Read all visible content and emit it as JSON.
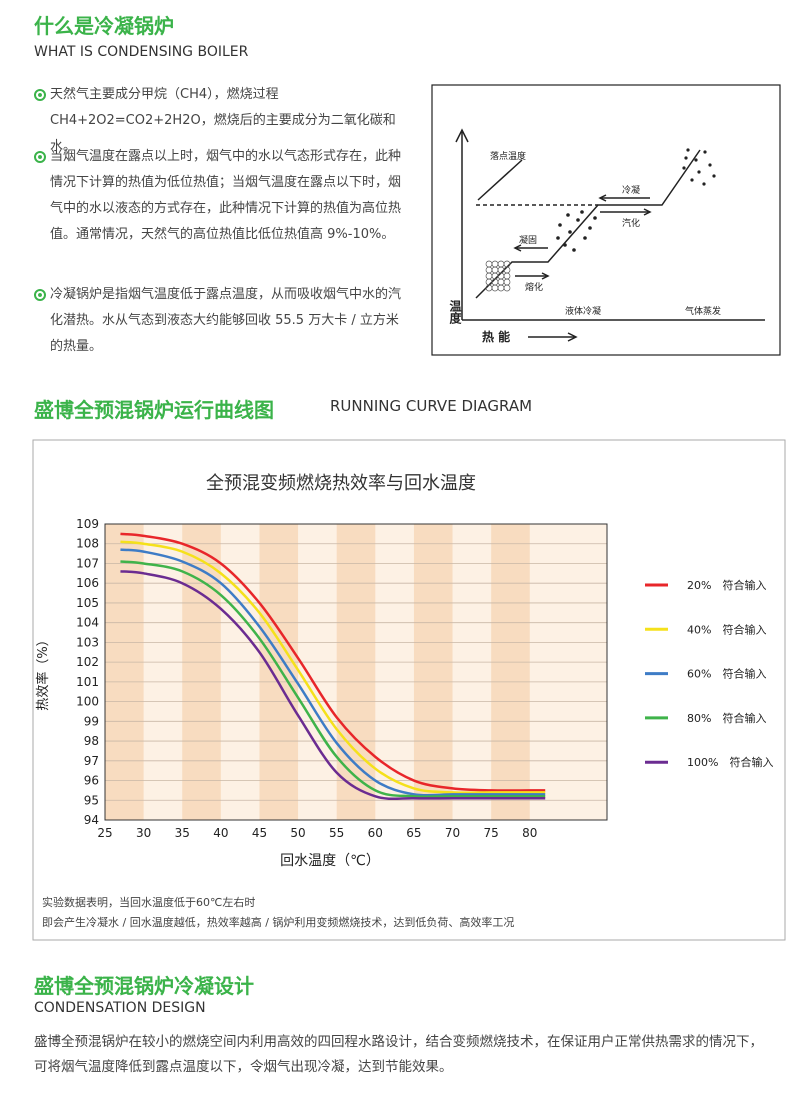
{
  "section1": {
    "title": "什么是冷凝锅炉",
    "subtitle": "WHAT IS CONDENSING BOILER",
    "bullets": [
      "天然气主要成分甲烷（CH4），燃烧过程 CH4+2O2=CO2+2H2O，燃烧后的主要成分为二氧化碳和水。",
      "当烟气温度在露点以上时，烟气中的水以气态形式存在，此种情况下计算的热值为低位热值；当烟气温度在露点以下时，烟气中的水以液态的方式存在，此种情况下计算的热值为高位热值。通常情况，天然气的高位热值比低位热值高 9%-10%。",
      "冷凝锅炉是指烟气温度低于露点温度，从而吸收烟气中水的汽化潜热。水从气态到液态大约能够回收 55.5 万大卡 / 立方米的热量。"
    ]
  },
  "diagram": {
    "dew": "落点温度",
    "condense": "冷凝",
    "vaporize": "汽化",
    "solidify": "凝固",
    "melt": "熔化",
    "liquid": "液体冷凝",
    "gas": "气体蒸发",
    "y_label": "温度",
    "x_label": "热 能"
  },
  "section2": {
    "title": "盛博全预混锅炉运行曲线图",
    "subtitle": "RUNNING CURVE DIAGRAM"
  },
  "chart_data": {
    "type": "line",
    "title": "全预混变频燃烧热效率与回水温度",
    "x_label": "回水温度（℃）",
    "y_label": "热效率（%）",
    "x": [
      27,
      30,
      35,
      40,
      45,
      50,
      55,
      60,
      65,
      70,
      75,
      80,
      82
    ],
    "series": [
      {
        "name": "20%　符合输入",
        "color": "#e8262a",
        "values": [
          108.5,
          108.4,
          108.0,
          107.0,
          105.0,
          102.2,
          99.2,
          97.2,
          96.0,
          95.6,
          95.5,
          95.5,
          95.5
        ]
      },
      {
        "name": "40%　符合输入",
        "color": "#f5e11b",
        "values": [
          108.1,
          108.0,
          107.6,
          106.5,
          104.5,
          101.6,
          98.6,
          96.6,
          95.6,
          95.4,
          95.4,
          95.4,
          95.4
        ]
      },
      {
        "name": "60%　符合输入",
        "color": "#3e7cc6",
        "values": [
          107.7,
          107.6,
          107.1,
          106.0,
          103.8,
          100.9,
          97.9,
          96.0,
          95.3,
          95.3,
          95.3,
          95.3,
          95.3
        ]
      },
      {
        "name": "80%　符合输入",
        "color": "#3fb34a",
        "values": [
          107.1,
          107.0,
          106.6,
          105.4,
          103.2,
          100.2,
          97.2,
          95.5,
          95.2,
          95.2,
          95.2,
          95.2,
          95.2
        ]
      },
      {
        "name": "100%　符合输入",
        "color": "#6b2c91",
        "values": [
          106.6,
          106.5,
          106.0,
          104.7,
          102.5,
          99.3,
          96.4,
          95.2,
          95.1,
          95.1,
          95.1,
          95.1,
          95.1
        ]
      }
    ],
    "xlim": [
      25,
      90
    ],
    "xticks": [
      25,
      30,
      35,
      40,
      45,
      50,
      55,
      60,
      65,
      70,
      75,
      80
    ],
    "ylim": [
      94,
      109
    ],
    "yticks": [
      94,
      95,
      96,
      97,
      98,
      99,
      100,
      101,
      102,
      103,
      104,
      105,
      106,
      107,
      108,
      109
    ],
    "grid": true
  },
  "note": [
    "实验数据表明，当回水温度低于60℃左右时",
    "即会产生冷凝水 / 回水温度越低，热效率越高 / 锅炉利用变频燃烧技术，达到低负荷、高效率工况"
  ],
  "section3": {
    "title": "盛博全预混锅炉冷凝设计",
    "subtitle": "CONDENSATION DESIGN",
    "text": "盛博全预混锅炉在较小的燃烧空间内利用高效的四回程水路设计，结合变频燃烧技术，在保证用户正常供热需求的情况下，可将烟气温度降低到露点温度以下，令烟气出现冷凝，达到节能效果。"
  }
}
